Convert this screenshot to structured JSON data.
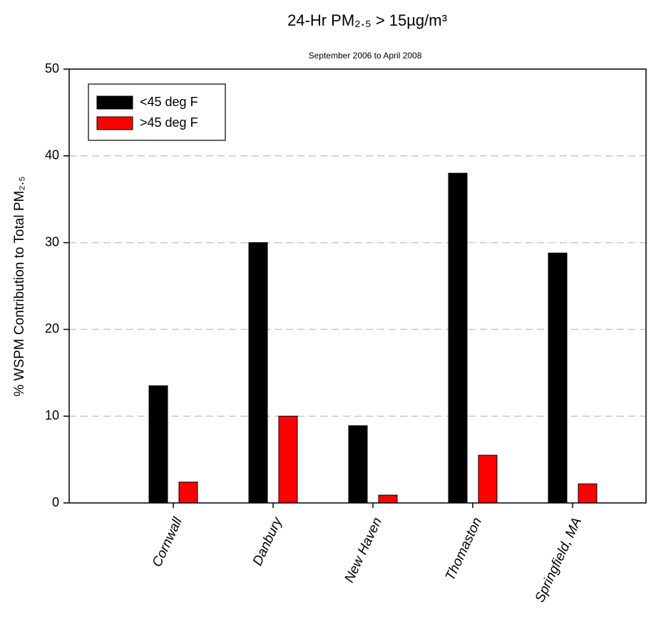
{
  "chart_data": {
    "type": "bar",
    "title": "24-Hr PM₂.₅ > 15µg/m³",
    "subtitle": "September 2006 to April 2008",
    "y_label": "% WSPM Contribution to Total PM₂.₅",
    "categories": [
      "Cornwall",
      "Danbury",
      "New Haven",
      "Thomaston",
      "Springfield, MA"
    ],
    "series": [
      {
        "name": "<45 deg F",
        "color": "#000000",
        "values": [
          13.5,
          30,
          8.9,
          38,
          28.8
        ]
      },
      {
        "name": ">45 deg F",
        "color": "#ff0000",
        "values": [
          2.4,
          10,
          0.9,
          5.5,
          2.2
        ]
      }
    ],
    "ylim": [
      0,
      50
    ],
    "yticks": [
      0,
      10,
      20,
      30,
      40,
      50
    ],
    "grid": true,
    "legend": "upper left"
  }
}
